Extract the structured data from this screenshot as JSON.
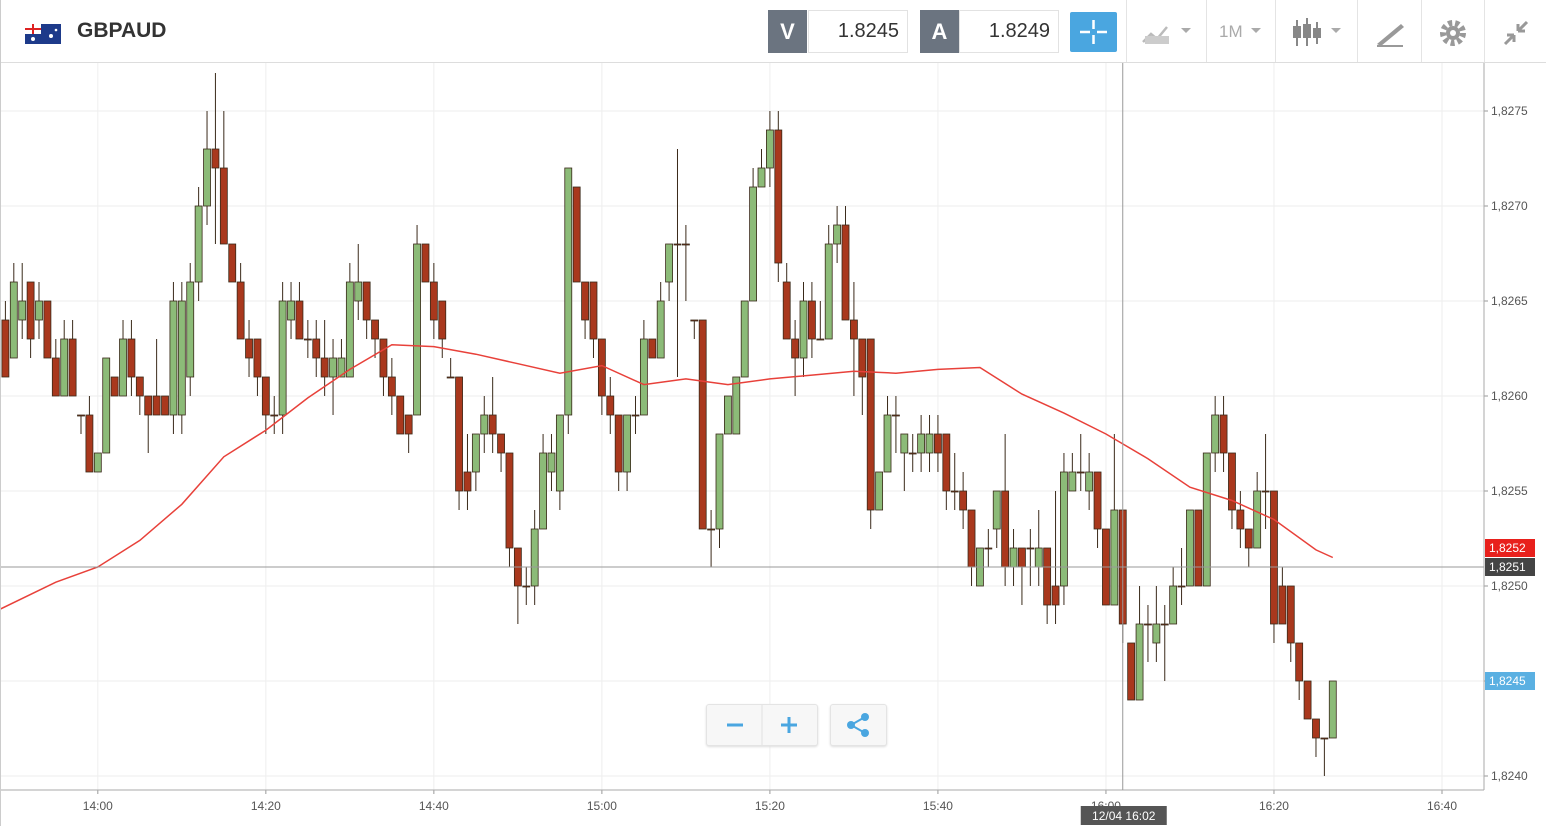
{
  "toolbar": {
    "symbol": "GBPAUD",
    "sell_label": "V",
    "sell": 1.8245,
    "buy_label": "A",
    "buy": 1.8249,
    "timeframe": "1M"
  },
  "chart_data": {
    "type": "candlestick",
    "up_color": "#8cbb78",
    "down_color": "#a9381d",
    "outline_color": "#3a2a1a",
    "x": [
      "13:49",
      "13:50",
      "13:51",
      "13:52",
      "13:53",
      "13:54",
      "13:55",
      "13:56",
      "13:57",
      "13:58",
      "13:59",
      "14:00",
      "14:01",
      "14:02",
      "14:03",
      "14:04",
      "14:05",
      "14:06",
      "14:07",
      "14:08",
      "14:09",
      "14:10",
      "14:11",
      "14:12",
      "14:13",
      "14:14",
      "14:15",
      "14:16",
      "14:17",
      "14:18",
      "14:19",
      "14:20",
      "14:21",
      "14:22",
      "14:23",
      "14:24",
      "14:25",
      "14:26",
      "14:27",
      "14:28",
      "14:29",
      "14:30",
      "14:31",
      "14:32",
      "14:33",
      "14:34",
      "14:35",
      "14:36",
      "14:37",
      "14:38",
      "14:39",
      "14:40",
      "14:41",
      "14:42",
      "14:43",
      "14:44",
      "14:45",
      "14:46",
      "14:47",
      "14:48",
      "14:49",
      "14:50",
      "14:51",
      "14:52",
      "14:53",
      "14:54",
      "14:55",
      "14:56",
      "14:57",
      "14:58",
      "14:59",
      "15:00",
      "15:01",
      "15:02",
      "15:03",
      "15:04",
      "15:05",
      "15:06",
      "15:07",
      "15:08",
      "15:09",
      "15:10",
      "15:11",
      "15:12",
      "15:13",
      "15:14",
      "15:15",
      "15:16",
      "15:17",
      "15:18",
      "15:19",
      "15:20",
      "15:21",
      "15:22",
      "15:23",
      "15:24",
      "15:25",
      "15:26",
      "15:27",
      "15:28",
      "15:29",
      "15:30",
      "15:31",
      "15:32",
      "15:33",
      "15:34",
      "15:35",
      "15:36",
      "15:37",
      "15:38",
      "15:39",
      "15:40",
      "15:41",
      "15:42",
      "15:43",
      "15:44",
      "15:45",
      "15:46",
      "15:47",
      "15:48",
      "15:49",
      "15:50",
      "15:51",
      "15:52",
      "15:53",
      "15:54",
      "15:55",
      "15:56",
      "15:57",
      "15:58",
      "15:59",
      "16:00",
      "16:01",
      "16:02",
      "16:03",
      "16:04",
      "16:05",
      "16:06",
      "16:07",
      "16:08",
      "16:09",
      "16:10",
      "16:11",
      "16:12",
      "16:13",
      "16:14",
      "16:15",
      "16:16",
      "16:17",
      "16:18",
      "16:19",
      "16:20",
      "16:21",
      "16:22",
      "16:23",
      "16:24",
      "16:25",
      "16:26",
      "16:27"
    ],
    "open": [
      1.8264,
      1.8262,
      1.8264,
      1.8266,
      1.8264,
      1.8265,
      1.8262,
      1.826,
      1.8263,
      1.8259,
      1.8259,
      1.8256,
      1.8257,
      1.8261,
      1.826,
      1.8263,
      1.8261,
      1.826,
      1.826,
      1.826,
      1.8259,
      1.8259,
      1.8261,
      1.8266,
      1.827,
      1.8273,
      1.8272,
      1.8268,
      1.8266,
      1.8263,
      1.8263,
      1.8261,
      1.8259,
      1.8259,
      1.8264,
      1.8265,
      1.8263,
      1.8263,
      1.8262,
      1.8261,
      1.8261,
      1.8261,
      1.8265,
      1.8266,
      1.8264,
      1.8263,
      1.8261,
      1.826,
      1.8259,
      1.8259,
      1.8268,
      1.8266,
      1.8265,
      1.8261,
      1.8261,
      1.8256,
      1.8256,
      1.8258,
      1.8259,
      1.8258,
      1.8257,
      1.8252,
      1.825,
      1.825,
      1.8253,
      1.8256,
      1.8255,
      1.8259,
      1.8271,
      1.8266,
      1.8266,
      1.8263,
      1.826,
      1.8259,
      1.8256,
      1.8259,
      1.8259,
      1.8263,
      1.8262,
      1.8266,
      1.8268,
      1.8268,
      1.8264,
      1.8264,
      1.8253,
      1.8253,
      1.8258,
      1.8258,
      1.8261,
      1.8265,
      1.8271,
      1.8272,
      1.8274,
      1.8266,
      1.8263,
      1.8262,
      1.8265,
      1.8263,
      1.8263,
      1.8268,
      1.8269,
      1.8264,
      1.8263,
      1.8263,
      1.8254,
      1.8256,
      1.8259,
      1.8257,
      1.8257,
      1.8257,
      1.8257,
      1.8258,
      1.8258,
      1.8255,
      1.8255,
      1.8254,
      1.825,
      1.8252,
      1.8253,
      1.8255,
      1.8251,
      1.8252,
      1.8252,
      1.8251,
      1.8252,
      1.825,
      1.825,
      1.8255,
      1.8256,
      1.8255,
      1.8256,
      1.8253,
      1.8249,
      1.8254,
      1.8247,
      1.8244,
      1.8248,
      1.8247,
      1.8248,
      1.8248,
      1.825,
      1.825,
      1.8254,
      1.825,
      1.8257,
      1.8259,
      1.8257,
      1.8254,
      1.8253,
      1.8252,
      1.8255,
      1.8255,
      1.825,
      1.825,
      1.8247,
      1.8245,
      1.8243,
      1.8242,
      1.8242
    ],
    "high": [
      1.8265,
      1.8267,
      1.8267,
      1.8266,
      1.8266,
      1.8265,
      1.8263,
      1.8264,
      1.8264,
      1.8259,
      1.826,
      1.8257,
      1.8262,
      1.8261,
      1.8264,
      1.8264,
      1.8261,
      1.826,
      1.8263,
      1.826,
      1.8266,
      1.8266,
      1.8267,
      1.8271,
      1.8275,
      1.8277,
      1.8275,
      1.8268,
      1.8267,
      1.8264,
      1.8263,
      1.8261,
      1.826,
      1.8266,
      1.8266,
      1.8266,
      1.8264,
      1.8264,
      1.8264,
      1.8263,
      1.8263,
      1.8267,
      1.8268,
      1.8266,
      1.8264,
      1.8263,
      1.8262,
      1.826,
      1.8259,
      1.8269,
      1.8268,
      1.8267,
      1.8265,
      1.8262,
      1.8261,
      1.8258,
      1.8258,
      1.826,
      1.8261,
      1.8258,
      1.8257,
      1.8252,
      1.8251,
      1.8254,
      1.8258,
      1.8258,
      1.8259,
      1.8272,
      1.8271,
      1.8266,
      1.8266,
      1.8263,
      1.8261,
      1.8259,
      1.8259,
      1.826,
      1.8264,
      1.8263,
      1.8266,
      1.8268,
      1.8273,
      1.8269,
      1.8264,
      1.8264,
      1.8254,
      1.8258,
      1.826,
      1.8261,
      1.8265,
      1.8272,
      1.8273,
      1.8275,
      1.8275,
      1.8267,
      1.8264,
      1.8266,
      1.8266,
      1.8265,
      1.8269,
      1.827,
      1.827,
      1.8266,
      1.8263,
      1.8263,
      1.8256,
      1.826,
      1.826,
      1.8258,
      1.8258,
      1.8259,
      1.8259,
      1.8259,
      1.8258,
      1.8257,
      1.8256,
      1.8254,
      1.8252,
      1.8253,
      1.8255,
      1.8258,
      1.8253,
      1.8252,
      1.8253,
      1.8254,
      1.8252,
      1.8255,
      1.8257,
      1.8257,
      1.8258,
      1.8257,
      1.8256,
      1.8253,
      1.8258,
      1.8254,
      1.8247,
      1.825,
      1.8249,
      1.825,
      1.8249,
      1.8251,
      1.8252,
      1.8254,
      1.8254,
      1.8257,
      1.826,
      1.826,
      1.8257,
      1.8255,
      1.8253,
      1.8256,
      1.8258,
      1.8255,
      1.8251,
      1.825,
      1.8247,
      1.8245,
      1.8243,
      1.8242,
      1.8245
    ],
    "low": [
      1.8261,
      1.8262,
      1.8263,
      1.8262,
      1.8263,
      1.8262,
      1.826,
      1.826,
      1.826,
      1.8258,
      1.8256,
      1.8256,
      1.8257,
      1.826,
      1.826,
      1.826,
      1.8259,
      1.8257,
      1.8259,
      1.8259,
      1.8258,
      1.8258,
      1.826,
      1.8265,
      1.8269,
      1.8268,
      1.8268,
      1.8266,
      1.8263,
      1.8261,
      1.826,
      1.8258,
      1.8258,
      1.8258,
      1.8263,
      1.8263,
      1.8262,
      1.8261,
      1.826,
      1.8259,
      1.8261,
      1.8261,
      1.8264,
      1.8263,
      1.8262,
      1.826,
      1.8259,
      1.8258,
      1.8257,
      1.8259,
      1.8266,
      1.8263,
      1.8262,
      1.8261,
      1.8254,
      1.8254,
      1.8255,
      1.8257,
      1.8257,
      1.8256,
      1.8251,
      1.8248,
      1.8249,
      1.8249,
      1.8253,
      1.8255,
      1.8254,
      1.8258,
      1.8266,
      1.8263,
      1.8262,
      1.8259,
      1.8258,
      1.8255,
      1.8255,
      1.8258,
      1.8259,
      1.8262,
      1.8262,
      1.8265,
      1.8261,
      1.8265,
      1.8263,
      1.8253,
      1.8251,
      1.8252,
      1.8258,
      1.8258,
      1.8261,
      1.8265,
      1.8271,
      1.8271,
      1.8266,
      1.8263,
      1.826,
      1.8261,
      1.8262,
      1.8263,
      1.8263,
      1.8267,
      1.8264,
      1.826,
      1.8259,
      1.8253,
      1.8254,
      1.8256,
      1.8257,
      1.8255,
      1.8256,
      1.8256,
      1.8256,
      1.8256,
      1.8254,
      1.8254,
      1.8253,
      1.825,
      1.825,
      1.8251,
      1.8252,
      1.825,
      1.825,
      1.8249,
      1.825,
      1.825,
      1.8248,
      1.8248,
      1.8249,
      1.8255,
      1.8255,
      1.8254,
      1.8252,
      1.8249,
      1.8249,
      1.8247,
      1.8244,
      1.8244,
      1.8246,
      1.8246,
      1.8245,
      1.8248,
      1.8249,
      1.825,
      1.825,
      1.825,
      1.8256,
      1.8256,
      1.8253,
      1.8252,
      1.8251,
      1.8252,
      1.8253,
      1.8247,
      1.8248,
      1.8246,
      1.8244,
      1.8243,
      1.8241,
      1.824,
      1.8242
    ],
    "close": [
      1.8261,
      1.8266,
      1.8265,
      1.8263,
      1.8265,
      1.8262,
      1.826,
      1.8263,
      1.826,
      1.8259,
      1.8256,
      1.8257,
      1.8262,
      1.826,
      1.8263,
      1.8261,
      1.826,
      1.8259,
      1.8259,
      1.8259,
      1.8265,
      1.8265,
      1.8266,
      1.827,
      1.8273,
      1.8272,
      1.8268,
      1.8266,
      1.8263,
      1.8262,
      1.8261,
      1.8259,
      1.8259,
      1.8265,
      1.8265,
      1.8263,
      1.8263,
      1.8262,
      1.8261,
      1.8262,
      1.8262,
      1.8266,
      1.8266,
      1.8264,
      1.8263,
      1.8261,
      1.826,
      1.8258,
      1.8258,
      1.8268,
      1.8266,
      1.8264,
      1.8263,
      1.8261,
      1.8255,
      1.8255,
      1.8258,
      1.8259,
      1.8258,
      1.8257,
      1.8252,
      1.825,
      1.825,
      1.8253,
      1.8257,
      1.8257,
      1.8259,
      1.8272,
      1.8266,
      1.8264,
      1.8263,
      1.826,
      1.8259,
      1.8256,
      1.8259,
      1.8259,
      1.8263,
      1.8262,
      1.8265,
      1.8268,
      1.8268,
      1.8268,
      1.8264,
      1.8253,
      1.8253,
      1.8258,
      1.826,
      1.8261,
      1.8265,
      1.8271,
      1.8272,
      1.8274,
      1.8267,
      1.8263,
      1.8262,
      1.8265,
      1.8263,
      1.8263,
      1.8268,
      1.8269,
      1.8264,
      1.8263,
      1.8261,
      1.8254,
      1.8256,
      1.8259,
      1.8259,
      1.8258,
      1.8257,
      1.8258,
      1.8258,
      1.8257,
      1.8255,
      1.8255,
      1.8254,
      1.8251,
      1.8252,
      1.8252,
      1.8255,
      1.8251,
      1.8252,
      1.8251,
      1.8252,
      1.8252,
      1.8249,
      1.8249,
      1.8256,
      1.8256,
      1.8256,
      1.8256,
      1.8253,
      1.8249,
      1.8254,
      1.8248,
      1.8244,
      1.8248,
      1.8248,
      1.8248,
      1.8248,
      1.825,
      1.825,
      1.8254,
      1.825,
      1.8257,
      1.8259,
      1.8257,
      1.8254,
      1.8253,
      1.8252,
      1.8255,
      1.8255,
      1.8248,
      1.8248,
      1.8247,
      1.8245,
      1.8243,
      1.8242,
      1.8242,
      1.8245
    ],
    "ma": {
      "color": "#e8413a",
      "x": [
        "13:48",
        "13:55",
        "14:00",
        "14:05",
        "14:10",
        "14:15",
        "14:20",
        "14:25",
        "14:30",
        "14:35",
        "14:40",
        "14:45",
        "14:50",
        "14:55",
        "15:00",
        "15:05",
        "15:10",
        "15:15",
        "15:20",
        "15:25",
        "15:30",
        "15:35",
        "15:40",
        "15:45",
        "15:50",
        "15:55",
        "16:00",
        "16:05",
        "16:10",
        "16:15",
        "16:20",
        "16:25",
        "16:27"
      ],
      "values": [
        1.82487,
        1.82502,
        1.8251,
        1.82524,
        1.82543,
        1.82568,
        1.82582,
        1.82599,
        1.82614,
        1.82627,
        1.82626,
        1.82622,
        1.82617,
        1.82612,
        1.82616,
        1.82606,
        1.82609,
        1.82606,
        1.82609,
        1.82611,
        1.82613,
        1.82612,
        1.82614,
        1.82615,
        1.82601,
        1.82591,
        1.8258,
        1.82567,
        1.82552,
        1.82545,
        1.82535,
        1.82519,
        1.82515
      ]
    },
    "xlim": [
      "13:48",
      "16:45"
    ],
    "xticks": [
      "14:00",
      "14:20",
      "14:40",
      "15:00",
      "15:20",
      "15:40",
      "16:00",
      "16:20",
      "16:40"
    ],
    "ylim": [
      1.8239,
      1.8277
    ],
    "yticks": [
      {
        "value": 1.824,
        "label": "1,8240"
      },
      {
        "value": 1.8245,
        "label": "1,8245"
      },
      {
        "value": 1.825,
        "label": "1,8250"
      },
      {
        "value": 1.8255,
        "label": "1,8255"
      },
      {
        "value": 1.826,
        "label": "1,8260"
      },
      {
        "value": 1.8265,
        "label": "1,8265"
      },
      {
        "value": 1.827,
        "label": "1,8270"
      },
      {
        "value": 1.8275,
        "label": "1,8275"
      }
    ],
    "grid": true,
    "price_labels": [
      {
        "value": 1.8252,
        "label": "1,8252",
        "color": "#e8201c"
      },
      {
        "value": 1.8245,
        "label": "1,8245",
        "color": "#5ab0e2"
      }
    ],
    "crosshair": {
      "label": "12/04 16:02",
      "y": {
        "value": 1.8251,
        "label": "1,8251"
      }
    }
  }
}
